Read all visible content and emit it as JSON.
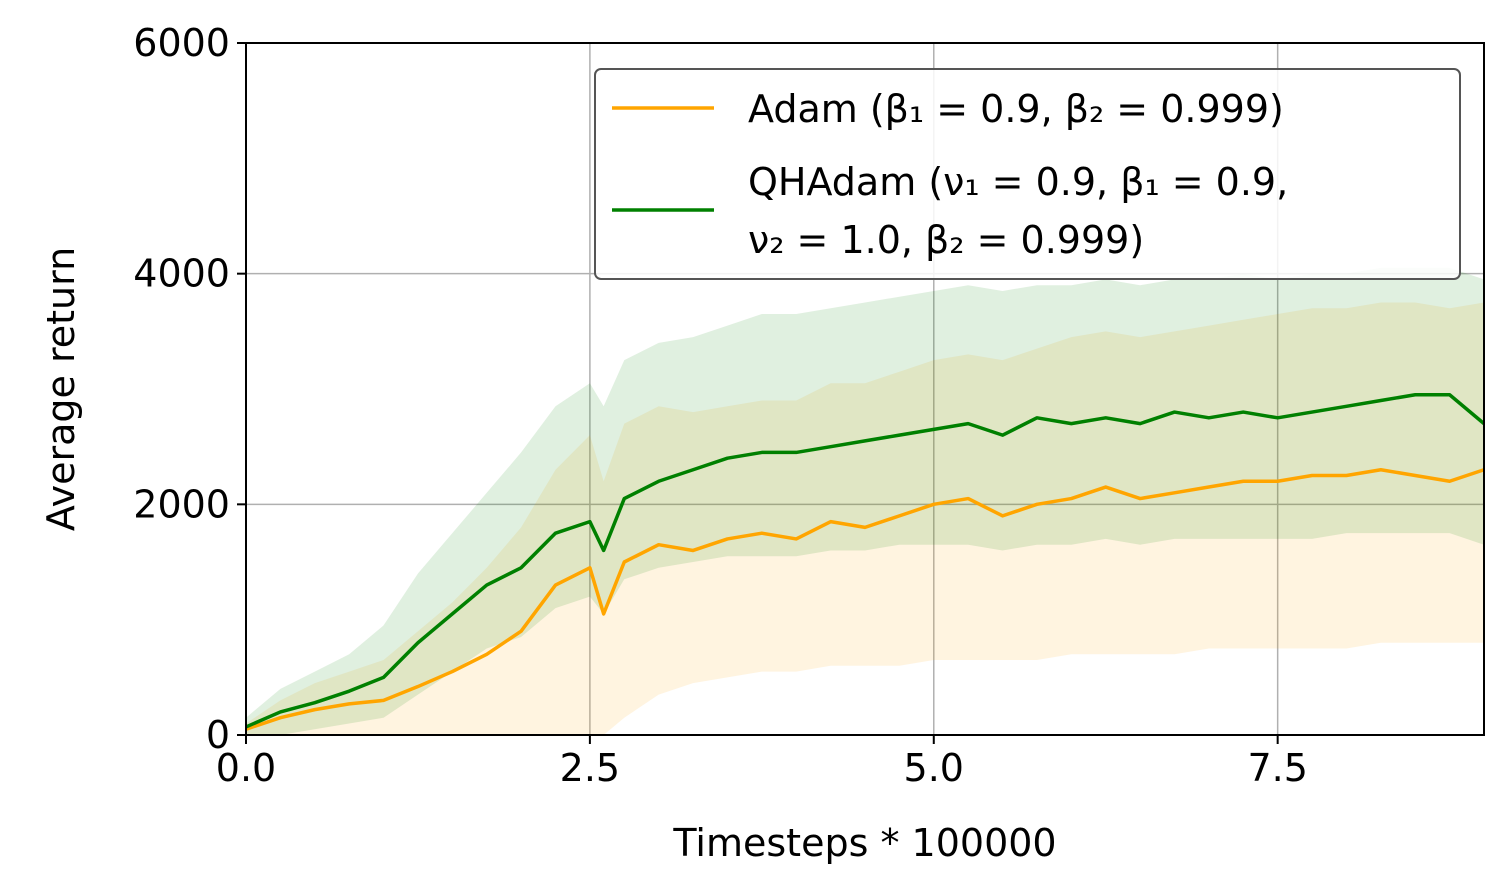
{
  "chart_data": {
    "type": "line",
    "xlabel": "Timesteps * 100000",
    "ylabel": "Average return",
    "xlim": [
      0,
      9
    ],
    "ylim": [
      0,
      6000
    ],
    "xticks": [
      0.0,
      2.5,
      5.0,
      7.5
    ],
    "xtick_labels": [
      "0.0",
      "2.5",
      "5.0",
      "7.5"
    ],
    "yticks": [
      0,
      2000,
      4000,
      6000
    ],
    "ytick_labels": [
      "0",
      "2000",
      "4000",
      "6000"
    ],
    "grid": true,
    "legend_position": "top-right",
    "series": [
      {
        "name": "Adam (β₁ = 0.9, β₂ = 0.999)",
        "legend_lines": [
          "Adam (β₁ = 0.9, β₂ = 0.999)"
        ],
        "color": "#FFA500",
        "band_color": "#FFA500",
        "x": [
          0,
          0.25,
          0.5,
          0.75,
          1.0,
          1.25,
          1.5,
          1.75,
          2.0,
          2.25,
          2.5,
          2.6,
          2.75,
          3.0,
          3.25,
          3.5,
          3.75,
          4.0,
          4.25,
          4.5,
          4.75,
          5.0,
          5.25,
          5.5,
          5.75,
          6.0,
          6.25,
          6.5,
          6.75,
          7.0,
          7.25,
          7.5,
          7.75,
          8.0,
          8.25,
          8.5,
          8.75,
          9.0
        ],
        "values": [
          50,
          150,
          220,
          270,
          300,
          420,
          550,
          700,
          900,
          1300,
          1450,
          1050,
          1500,
          1650,
          1600,
          1700,
          1750,
          1700,
          1850,
          1800,
          1900,
          2000,
          2050,
          1900,
          2000,
          2050,
          2150,
          2050,
          2100,
          2150,
          2200,
          2200,
          2250,
          2250,
          2300,
          2250,
          2200,
          2300
        ],
        "band_low": [
          0,
          0,
          0,
          0,
          0,
          0,
          0,
          0,
          0,
          0,
          0,
          0,
          150,
          350,
          450,
          500,
          550,
          550,
          600,
          600,
          600,
          650,
          650,
          650,
          650,
          700,
          700,
          700,
          700,
          750,
          750,
          750,
          750,
          750,
          800,
          800,
          800,
          800
        ],
        "band_high": [
          100,
          300,
          450,
          550,
          650,
          900,
          1150,
          1450,
          1800,
          2300,
          2600,
          2200,
          2700,
          2850,
          2800,
          2850,
          2900,
          2900,
          3050,
          3050,
          3150,
          3250,
          3300,
          3250,
          3350,
          3450,
          3500,
          3450,
          3500,
          3550,
          3600,
          3650,
          3700,
          3700,
          3750,
          3750,
          3700,
          3750
        ]
      },
      {
        "name": "QHAdam (ν₁ = 0.9, β₁ = 0.9, ν₂ = 1.0, β₂ = 0.999)",
        "legend_lines": [
          "QHAdam (ν₁ = 0.9, β₁ = 0.9,",
          "ν₂ = 1.0, β₂ = 0.999)"
        ],
        "color": "#008000",
        "band_color": "#008000",
        "x": [
          0,
          0.25,
          0.5,
          0.75,
          1.0,
          1.25,
          1.5,
          1.75,
          2.0,
          2.25,
          2.5,
          2.6,
          2.75,
          3.0,
          3.25,
          3.5,
          3.75,
          4.0,
          4.25,
          4.5,
          4.75,
          5.0,
          5.25,
          5.5,
          5.75,
          6.0,
          6.25,
          6.5,
          6.75,
          7.0,
          7.25,
          7.5,
          7.75,
          8.0,
          8.25,
          8.5,
          8.75,
          9.0
        ],
        "values": [
          70,
          200,
          280,
          380,
          500,
          800,
          1050,
          1300,
          1450,
          1750,
          1850,
          1600,
          2050,
          2200,
          2300,
          2400,
          2450,
          2450,
          2500,
          2550,
          2600,
          2650,
          2700,
          2600,
          2750,
          2700,
          2750,
          2700,
          2800,
          2750,
          2800,
          2750,
          2800,
          2850,
          2900,
          2950,
          2950,
          2700
        ],
        "band_low": [
          0,
          0,
          50,
          100,
          150,
          350,
          550,
          750,
          850,
          1100,
          1200,
          1050,
          1350,
          1450,
          1500,
          1550,
          1550,
          1550,
          1600,
          1600,
          1650,
          1650,
          1650,
          1600,
          1650,
          1650,
          1700,
          1650,
          1700,
          1700,
          1700,
          1700,
          1700,
          1750,
          1750,
          1750,
          1750,
          1650
        ],
        "band_high": [
          150,
          400,
          550,
          700,
          950,
          1400,
          1750,
          2100,
          2450,
          2850,
          3050,
          2850,
          3250,
          3400,
          3450,
          3550,
          3650,
          3650,
          3700,
          3750,
          3800,
          3850,
          3900,
          3850,
          3900,
          3900,
          3950,
          3900,
          3950,
          3950,
          4000,
          3950,
          4000,
          4000,
          4050,
          4050,
          4050,
          3950
        ]
      }
    ]
  }
}
